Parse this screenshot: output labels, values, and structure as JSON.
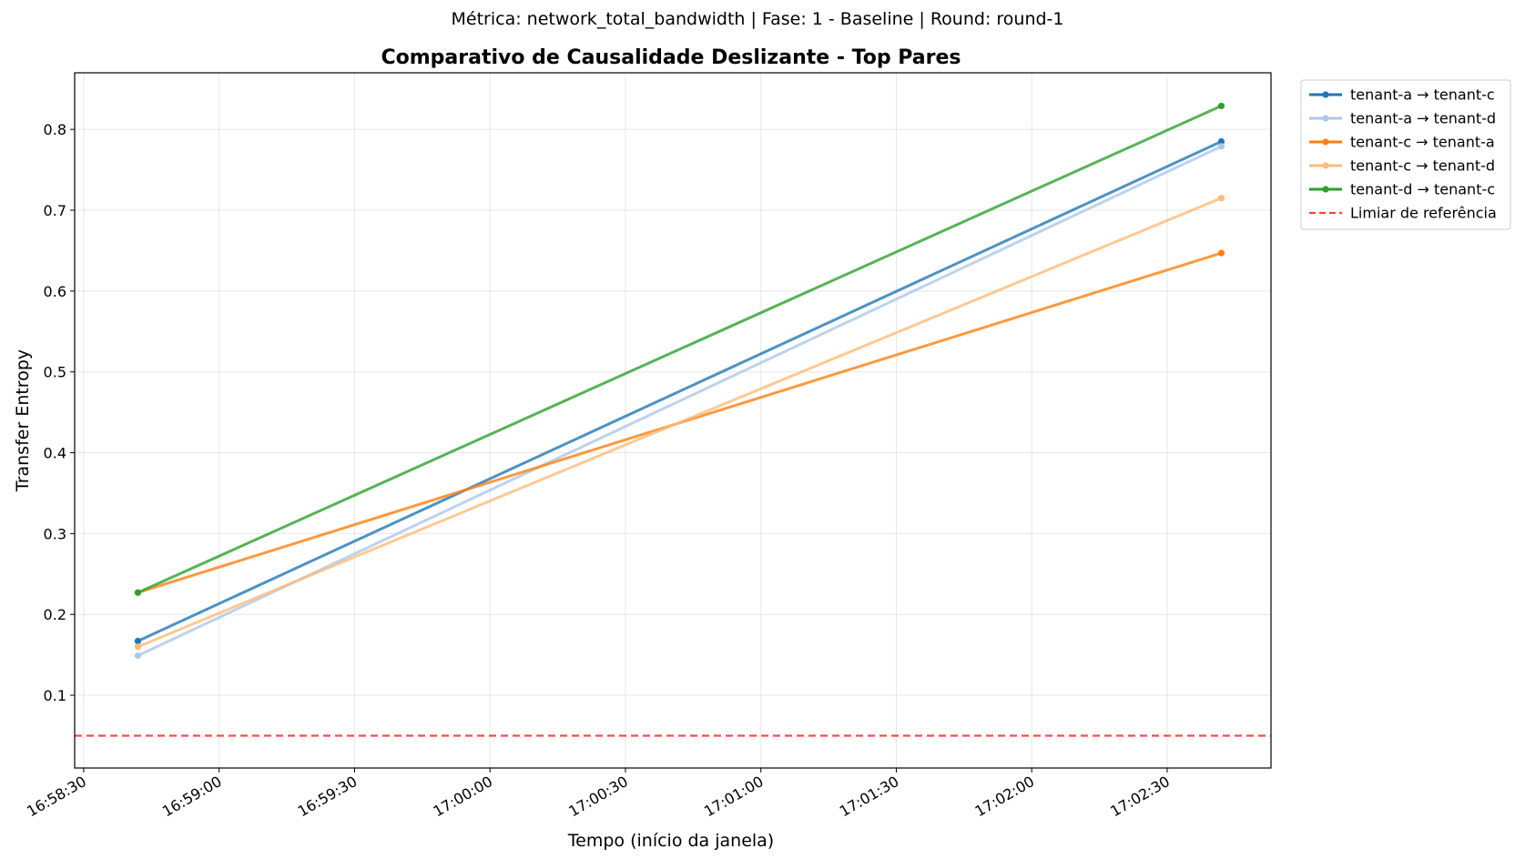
{
  "figure": {
    "suptitle": "Métrica: network_total_bandwidth | Fase: 1 - Baseline | Round: round-1"
  },
  "chart_data": {
    "type": "line",
    "title": "Comparativo de Causalidade Deslizante - Top Pares",
    "xlabel": "Tempo (início da janela)",
    "ylabel": "Transfer Entropy",
    "x_ticks": [
      "16:58:30",
      "16:59:00",
      "16:59:30",
      "17:00:00",
      "17:00:30",
      "17:01:00",
      "17:01:30",
      "17:02:00",
      "17:02:30"
    ],
    "y_ticks": [
      "0.1",
      "0.2",
      "0.3",
      "0.4",
      "0.5",
      "0.6",
      "0.7",
      "0.8"
    ],
    "xlim": [
      "16:58:28",
      "17:02:53"
    ],
    "ylim": [
      0.01,
      0.87
    ],
    "x": [
      "16:58:42",
      "17:02:42"
    ],
    "grid": true,
    "legend_position": "outside top-right",
    "series": [
      {
        "name": "tenant-a → tenant-c",
        "color": "#1f77b4",
        "values": [
          0.167,
          0.785
        ]
      },
      {
        "name": "tenant-a → tenant-d",
        "color": "#aec7e8",
        "values": [
          0.149,
          0.779
        ]
      },
      {
        "name": "tenant-c → tenant-a",
        "color": "#ff7f0e",
        "values": [
          0.227,
          0.647
        ]
      },
      {
        "name": "tenant-c → tenant-d",
        "color": "#ffbb78",
        "values": [
          0.16,
          0.715
        ]
      },
      {
        "name": "tenant-d → tenant-c",
        "color": "#2ca02c",
        "values": [
          0.227,
          0.829
        ]
      }
    ],
    "reference_line": {
      "name": "Limiar de referência",
      "value": 0.05,
      "color": "#ff0000",
      "style": "dashed"
    }
  }
}
